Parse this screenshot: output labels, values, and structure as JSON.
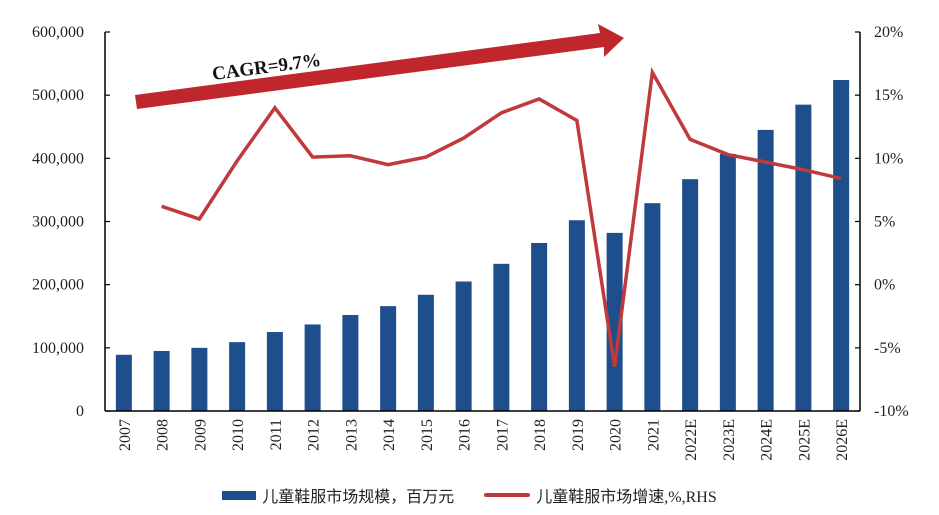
{
  "chart_data": {
    "type": "bar+line",
    "title": "",
    "categories": [
      "2007",
      "2008",
      "2009",
      "2010",
      "2011",
      "2012",
      "2013",
      "2014",
      "2015",
      "2016",
      "2017",
      "2018",
      "2019",
      "2020",
      "2021",
      "2022E",
      "2023E",
      "2024E",
      "2025E",
      "2026E"
    ],
    "series": [
      {
        "name": "儿童鞋服市场规模，百万元",
        "type": "bar",
        "axis": "left",
        "color": "#1F4E8C",
        "values": [
          89000,
          95000,
          100000,
          109000,
          125000,
          137000,
          152000,
          166000,
          184000,
          205000,
          233000,
          266000,
          302000,
          282000,
          329000,
          367000,
          407000,
          445000,
          485000,
          524000
        ]
      },
      {
        "name": "儿童鞋服市场增速,%,RHS",
        "type": "line",
        "axis": "right",
        "color": "#C0393B",
        "values": [
          null,
          6.2,
          5.2,
          9.8,
          14.0,
          10.1,
          10.2,
          9.5,
          10.1,
          11.6,
          13.6,
          14.7,
          13.0,
          -6.5,
          16.8,
          11.5,
          10.3,
          9.7,
          9.1,
          8.4
        ]
      }
    ],
    "y_left": {
      "label": "",
      "ylim": [
        0,
        600000
      ],
      "ticks": [
        "0",
        "100,000",
        "200,000",
        "300,000",
        "400,000",
        "500,000",
        "600,000"
      ],
      "tick_values": [
        0,
        100000,
        200000,
        300000,
        400000,
        500000,
        600000
      ]
    },
    "y_right": {
      "label": "",
      "ylim": [
        -10,
        20
      ],
      "ticks": [
        "-10%",
        "-5%",
        "0%",
        "5%",
        "10%",
        "15%",
        "20%"
      ],
      "tick_values": [
        -10,
        -5,
        0,
        5,
        10,
        15,
        20
      ]
    },
    "xlabel": "",
    "grid": false,
    "legend_position": "bottom",
    "annotations": [
      {
        "type": "arrow",
        "text": "CAGR=9.7%",
        "color": "#C0272D"
      }
    ]
  },
  "legend": {
    "bar_label": "儿童鞋服市场规模，百万元",
    "line_label": "儿童鞋服市场增速,%,RHS"
  },
  "annotation": {
    "cagr_text": "CAGR=9.7%"
  }
}
